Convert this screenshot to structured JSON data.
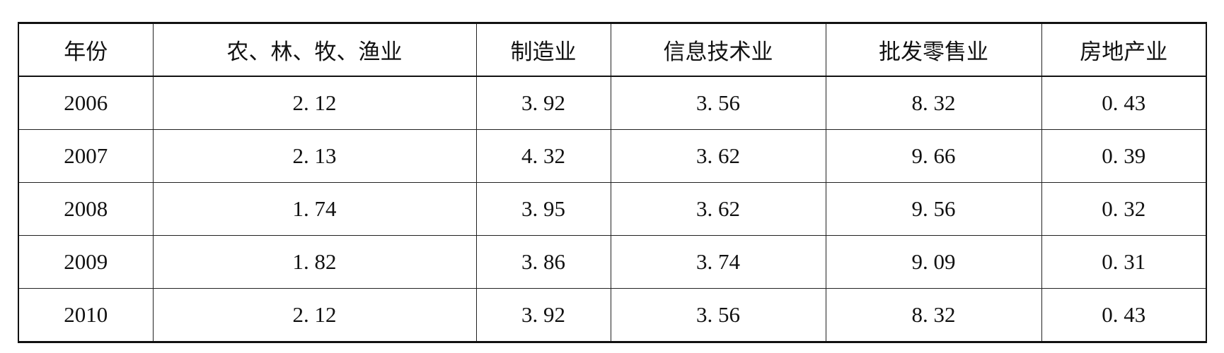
{
  "table": {
    "headers": [
      "年份",
      "农、林、牧、渔业",
      "制造业",
      "信息技术业",
      "批发零售业",
      "房地产业"
    ],
    "rows": [
      [
        "2006",
        "2. 12",
        "3. 92",
        "3. 56",
        "8. 32",
        "0. 43"
      ],
      [
        "2007",
        "2. 13",
        "4. 32",
        "3. 62",
        "9. 66",
        "0. 39"
      ],
      [
        "2008",
        "1. 74",
        "3. 95",
        "3. 62",
        "9. 56",
        "0. 32"
      ],
      [
        "2009",
        "1. 82",
        "3. 86",
        "3. 74",
        "9. 09",
        "0. 31"
      ],
      [
        "2010",
        "2. 12",
        "3. 92",
        "3. 56",
        "8. 32",
        "0. 43"
      ]
    ]
  }
}
